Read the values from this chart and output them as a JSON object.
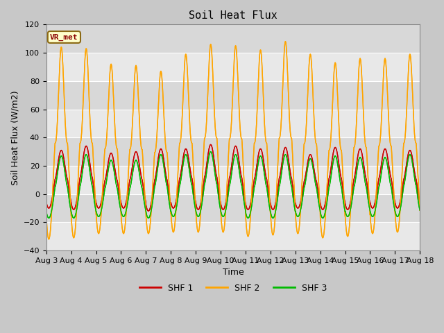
{
  "title": "Soil Heat Flux",
  "ylabel": "Soil Heat Flux (W/m2)",
  "xlabel": "Time",
  "xlim_days": [
    0,
    15
  ],
  "ylim": [
    -40,
    120
  ],
  "yticks": [
    -40,
    -20,
    0,
    20,
    40,
    60,
    80,
    100,
    120
  ],
  "xtick_labels": [
    "Aug 3",
    "Aug 4",
    "Aug 5",
    "Aug 6",
    "Aug 7",
    "Aug 8",
    "Aug 9",
    "Aug 10",
    "Aug 11",
    "Aug 12",
    "Aug 13",
    "Aug 14",
    "Aug 15",
    "Aug 16",
    "Aug 17",
    "Aug 18"
  ],
  "color_shf1": "#cc0000",
  "color_shf2": "#ffa500",
  "color_shf3": "#00bb00",
  "legend_label1": "SHF 1",
  "legend_label2": "SHF 2",
  "legend_label3": "SHF 3",
  "vr_met_label": "VR_met",
  "bg_color": "#d8d8d8",
  "plot_bg": "#e8e8e8",
  "line_width": 1.0,
  "title_fontsize": 11,
  "axis_label_fontsize": 9,
  "tick_fontsize": 8,
  "shf1_peaks": [
    31,
    34,
    29,
    30,
    32,
    32,
    35,
    34,
    32,
    33,
    28,
    33,
    32,
    32,
    31
  ],
  "shf1_troughs": [
    -10,
    -11,
    -10,
    -10,
    -12,
    -10,
    -11,
    -11,
    -11,
    -11,
    -10,
    -11,
    -11,
    -10,
    -10
  ],
  "shf2_peaks": [
    104,
    103,
    92,
    91,
    87,
    99,
    106,
    105,
    102,
    108,
    99,
    93,
    96,
    96,
    99
  ],
  "shf2_troughs": [
    -32,
    -31,
    -28,
    -28,
    -28,
    -27,
    -27,
    -27,
    -30,
    -29,
    -28,
    -31,
    -30,
    -28,
    -27
  ],
  "shf3_peaks": [
    27,
    28,
    24,
    24,
    28,
    28,
    30,
    28,
    27,
    28,
    25,
    27,
    26,
    26,
    28
  ],
  "shf3_troughs": [
    -17,
    -17,
    -16,
    -16,
    -17,
    -16,
    -16,
    -16,
    -17,
    -17,
    -16,
    -17,
    -16,
    -16,
    -16
  ]
}
